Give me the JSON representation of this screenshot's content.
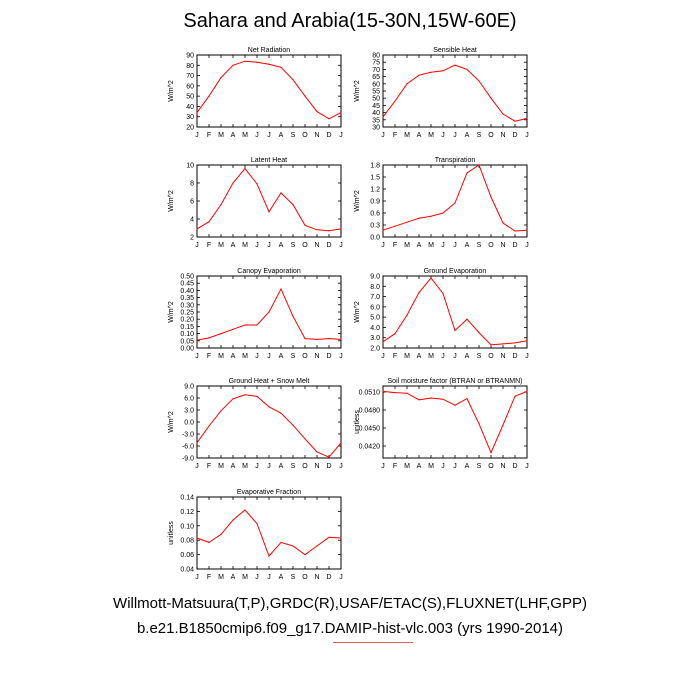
{
  "title": "Sahara and Arabia(15-30N,15W-60E)",
  "footer_line1": "Willmott-Matsuura(T,P),GRDC(R),USAF/ETAC(S),FLUXNET(LHF,GPP)",
  "footer_line2": "b.e21.B1850cmip6.f09_g17.DAMIP-hist-vlc.003 (yrs 1990-2014)",
  "months": [
    "J",
    "F",
    "M",
    "A",
    "M",
    "J",
    "J",
    "A",
    "S",
    "O",
    "N",
    "D",
    "J"
  ],
  "line_color": "#ff0000",
  "chart_data": [
    {
      "type": "line",
      "title": "Net Radiation",
      "ylabel": "W/m^2",
      "ylim": [
        20,
        90
      ],
      "yticks": [
        "20",
        "30",
        "40",
        "50",
        "60",
        "70",
        "80",
        "90"
      ],
      "values": [
        34,
        50,
        68,
        80,
        84,
        83,
        81,
        78,
        66,
        50,
        35,
        28,
        34
      ]
    },
    {
      "type": "line",
      "title": "Sensible Heat",
      "ylabel": "W/m^2",
      "ylim": [
        30,
        80
      ],
      "yticks": [
        "30",
        "35",
        "40",
        "45",
        "50",
        "55",
        "60",
        "65",
        "70",
        "75",
        "80"
      ],
      "values": [
        37,
        48,
        60,
        66,
        68,
        69,
        73,
        70,
        62,
        50,
        39,
        34,
        36
      ]
    },
    {
      "type": "line",
      "title": "Latent Heat",
      "ylabel": "W/m^2",
      "ylim": [
        2,
        10
      ],
      "yticks": [
        "2",
        "4",
        "6",
        "8",
        "10"
      ],
      "values": [
        2.9,
        3.7,
        5.6,
        8.0,
        9.6,
        7.9,
        4.8,
        6.9,
        5.6,
        3.3,
        2.8,
        2.7,
        2.9
      ]
    },
    {
      "type": "line",
      "title": "Transpiration",
      "ylabel": "W/m^2",
      "ylim": [
        0,
        1.8
      ],
      "yticks": [
        "0.0",
        "0.3",
        "0.6",
        "0.9",
        "1.2",
        "1.5",
        "1.8"
      ],
      "values": [
        0.17,
        0.27,
        0.37,
        0.47,
        0.52,
        0.6,
        0.85,
        1.6,
        1.8,
        1.0,
        0.35,
        0.15,
        0.17
      ]
    },
    {
      "type": "line",
      "title": "Canopy Evaporation",
      "ylabel": "W/m^2",
      "ylim": [
        0,
        0.5
      ],
      "yticks": [
        "0.00",
        "0.05",
        "0.10",
        "0.15",
        "0.20",
        "0.25",
        "0.30",
        "0.35",
        "0.40",
        "0.45",
        "0.50"
      ],
      "values": [
        0.055,
        0.07,
        0.1,
        0.13,
        0.16,
        0.16,
        0.25,
        0.41,
        0.22,
        0.065,
        0.06,
        0.065,
        0.06
      ]
    },
    {
      "type": "line",
      "title": "Ground Evaporation",
      "ylabel": "W/m^2",
      "ylim": [
        2,
        9
      ],
      "yticks": [
        "2.0",
        "3.0",
        "4.0",
        "5.0",
        "6.0",
        "7.0",
        "8.0",
        "9.0"
      ],
      "values": [
        2.6,
        3.4,
        5.2,
        7.4,
        8.8,
        7.3,
        3.7,
        4.8,
        3.5,
        2.3,
        2.4,
        2.5,
        2.7
      ]
    },
    {
      "type": "line",
      "title": "Ground Heat + Snow Melt",
      "ylabel": "W/m^2",
      "ylim": [
        -9,
        9
      ],
      "yticks": [
        "-9.0",
        "-6.0",
        "-3.0",
        "0.0",
        "3.0",
        "6.0",
        "9.0"
      ],
      "values": [
        -5.2,
        -1.0,
        2.8,
        5.8,
        6.8,
        6.4,
        3.8,
        2.2,
        -0.8,
        -4.2,
        -7.5,
        -8.8,
        -5.2
      ]
    },
    {
      "type": "line",
      "title": "Soil moisture factor (BTRAN or BTRANMN)",
      "ylabel": "unitless",
      "ylim": [
        0.04,
        0.052
      ],
      "yticks": [
        "0.0420",
        "0.0450",
        "0.0480",
        "0.0510"
      ],
      "values": [
        0.0511,
        0.0509,
        0.0508,
        0.0497,
        0.05,
        0.0498,
        0.0488,
        0.0499,
        0.0457,
        0.0409,
        0.0455,
        0.0503,
        0.0511
      ]
    },
    {
      "type": "line",
      "title": "Evaporative Fraction",
      "ylabel": "unitless",
      "ylim": [
        0.04,
        0.14
      ],
      "yticks": [
        "0.04",
        "0.06",
        "0.08",
        "0.10",
        "0.12",
        "0.14"
      ],
      "values": [
        0.083,
        0.077,
        0.088,
        0.108,
        0.122,
        0.103,
        0.058,
        0.077,
        0.072,
        0.06,
        0.072,
        0.084,
        0.083
      ]
    }
  ]
}
